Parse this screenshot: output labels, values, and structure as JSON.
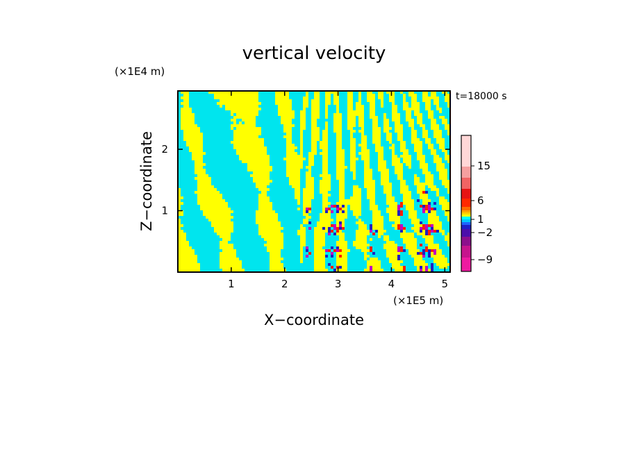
{
  "chart_data": {
    "type": "heatmap",
    "title": "vertical velocity",
    "xlabel": "X−coordinate",
    "ylabel": "Z−coordinate",
    "x_unit": "(×1E5 m)",
    "y_unit": "(×1E4 m)",
    "time_label": "t=18000 s",
    "xlim": [
      0,
      5.1
    ],
    "ylim": [
      0,
      2.95
    ],
    "x_ticks": [
      1,
      2,
      3,
      4,
      5
    ],
    "y_ticks": [
      1,
      2
    ],
    "x_tick_labels": [
      "1",
      "2",
      "3",
      "4",
      "5"
    ],
    "y_tick_labels": [
      "1",
      "2"
    ],
    "colorbar": {
      "levels_bottom_to_top": [
        {
          "color": "#ee1aa0"
        },
        {
          "color": "#c6148d"
        },
        {
          "color": "#8c0f8c"
        },
        {
          "color": "#4b0faa"
        },
        {
          "color": "#1e1ec8"
        },
        {
          "color": "#1e64ff"
        },
        {
          "color": "#00c8ff"
        },
        {
          "color": "#00ffff"
        },
        {
          "color": "#ffff00"
        },
        {
          "color": "#ffd200"
        },
        {
          "color": "#ffa500"
        },
        {
          "color": "#ff6a00"
        },
        {
          "color": "#ff2800"
        },
        {
          "color": "#e61414"
        },
        {
          "color": "#f06464"
        },
        {
          "color": "#f5a0a0"
        },
        {
          "color": "#ffd7d7"
        }
      ],
      "labels": [
        {
          "text": "−9",
          "value": -9
        },
        {
          "text": "−2",
          "value": -2
        },
        {
          "text": "1",
          "value": 1
        },
        {
          "text": "6",
          "value": 6
        },
        {
          "text": "15",
          "value": 15
        }
      ]
    },
    "field_colors": {
      "updraft": "#ffff00",
      "downdraft": "#00e5ee",
      "strong_up": "#ff2000",
      "strong_down": "#2020c0",
      "extreme_down": "#c000c0"
    },
    "convective_regions": [
      {
        "x_min": 2.4,
        "x_max": 3.2,
        "z_max": 1.1
      },
      {
        "x_min": 3.6,
        "x_max": 3.8,
        "z_max": 0.9
      },
      {
        "x_min": 4.1,
        "x_max": 4.9,
        "z_max": 1.3
      }
    ]
  }
}
